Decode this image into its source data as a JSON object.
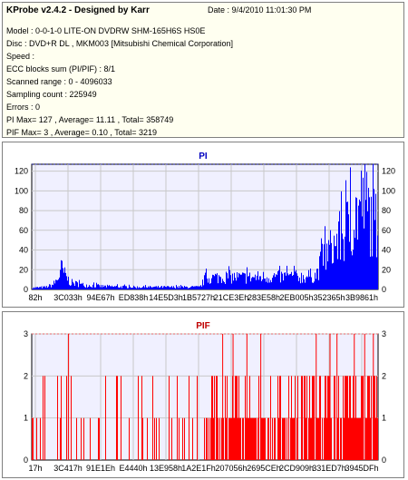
{
  "info": {
    "title": "KProbe v2.4.2 - Designed by Karr",
    "date": "Date : 9/4/2010 11:01:30 PM",
    "lines": [
      "Model : 0-0-1-0 LITE-ON DVDRW SHM-165H6S HS0E",
      "Disc : DVD+R DL , MKM003 [Mitsubishi Chemical Corporation]",
      "Speed :",
      "ECC blocks sum (PI/PIF) : 8/1",
      "Scanned range : 0 - 4096033",
      "Sampling count : 225949",
      "Errors : 0",
      "PI Max= 127 , Average= 11.11 , Total= 358749",
      "PIF Max= 3 , Average= 0.10 , Total= 3219"
    ]
  },
  "colors": {
    "pi": "#0000ff",
    "pif": "#ff0000",
    "plot_bg": "#f0f0ff",
    "grid": "#c8c8c8"
  },
  "chart_data": [
    {
      "type": "bar",
      "title": "PI",
      "x_tick_labels": [
        "82h",
        "3C033h",
        "94E67h",
        "ED838h",
        "14E5D3h",
        "1B5727h",
        "21CE3Eh",
        "283E58h",
        "2EB005h",
        "352365h",
        "3B9861h"
      ],
      "y_ticks": [
        0,
        20,
        40,
        60,
        80,
        100,
        120
      ],
      "ylim": [
        0,
        127
      ],
      "max": 127,
      "series": [
        {
          "profile": [
            {
              "x": 0.0,
              "y": 2
            },
            {
              "x": 0.04,
              "y": 3
            },
            {
              "x": 0.06,
              "y": 6
            },
            {
              "x": 0.075,
              "y": 14
            },
            {
              "x": 0.085,
              "y": 27
            },
            {
              "x": 0.095,
              "y": 18
            },
            {
              "x": 0.11,
              "y": 9
            },
            {
              "x": 0.14,
              "y": 6
            },
            {
              "x": 0.2,
              "y": 4
            },
            {
              "x": 0.3,
              "y": 3
            },
            {
              "x": 0.4,
              "y": 3
            },
            {
              "x": 0.485,
              "y": 3
            },
            {
              "x": 0.5,
              "y": 14
            },
            {
              "x": 0.55,
              "y": 16
            },
            {
              "x": 0.62,
              "y": 15
            },
            {
              "x": 0.7,
              "y": 16
            },
            {
              "x": 0.78,
              "y": 16
            },
            {
              "x": 0.82,
              "y": 18
            },
            {
              "x": 0.84,
              "y": 40
            },
            {
              "x": 0.87,
              "y": 55
            },
            {
              "x": 0.9,
              "y": 70
            },
            {
              "x": 0.93,
              "y": 90
            },
            {
              "x": 0.955,
              "y": 112
            },
            {
              "x": 0.97,
              "y": 100
            },
            {
              "x": 0.985,
              "y": 85
            },
            {
              "x": 1.0,
              "y": 80
            }
          ]
        }
      ]
    },
    {
      "type": "bar",
      "title": "PIF",
      "x_tick_labels": [
        "17h",
        "3C417h",
        "91E1Eh",
        "E4440h",
        "13E958h",
        "1A2E1Fh",
        "207056h",
        "2695CEh",
        "2CD909h",
        "331ED7h",
        "3945DFh"
      ],
      "y_ticks": [
        0,
        1,
        2,
        3
      ],
      "ylim": [
        0,
        3
      ],
      "max": 3,
      "series": [
        {
          "profile": [
            {
              "x": 0.0,
              "y": 0.15
            },
            {
              "x": 0.48,
              "y": 0.15
            },
            {
              "x": 0.5,
              "y": 0.75
            },
            {
              "x": 1.0,
              "y": 0.8
            }
          ],
          "spikes_3": [
            0.105,
            0.55,
            0.58,
            0.62,
            0.66,
            0.82,
            0.86,
            0.88,
            0.93,
            0.96,
            0.985
          ]
        }
      ]
    }
  ]
}
